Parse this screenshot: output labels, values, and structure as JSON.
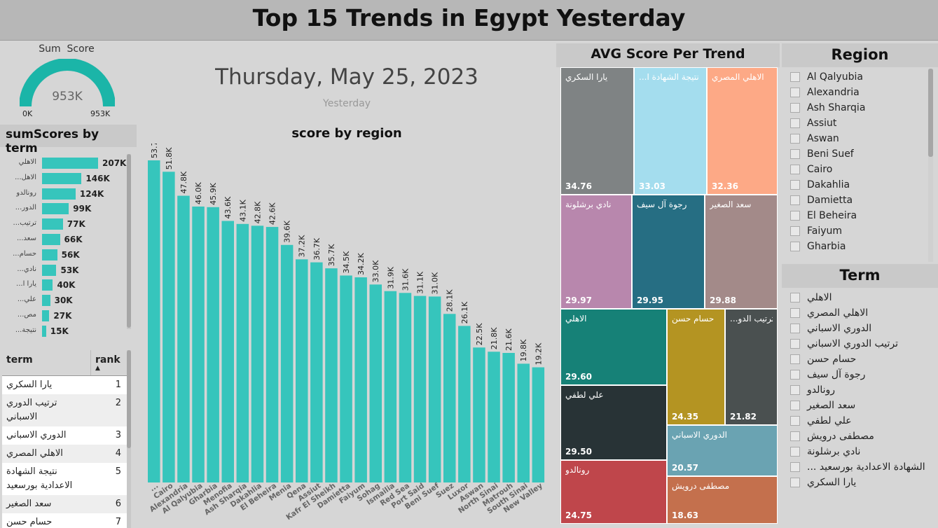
{
  "title": "Top 15 Trends in Egypt Yesterday",
  "gauge": {
    "title": "Sum  Score",
    "value_label": "953K",
    "min_label": "0K",
    "max_label": "953K",
    "fill_fraction": 1.0,
    "color": "#1bb5a8"
  },
  "date_card": {
    "date": "Thursday, May 25, 2023",
    "caption": "Yesterday"
  },
  "sum_scores": {
    "title": "sumScores by term",
    "terms": [
      "الاهلي",
      "...الاهل",
      "رونالدو",
      "...الدور",
      "...ترتيب",
      "...سعد",
      "...حسام",
      "...نادي",
      "...يارا ا",
      "...علي",
      "...مص",
      "...نتيجة"
    ],
    "values": [
      207,
      146,
      124,
      99,
      77,
      66,
      56,
      53,
      40,
      30,
      27,
      15
    ],
    "value_labels": [
      "207K",
      "146K",
      "124K",
      "99K",
      "77K",
      "66K",
      "56K",
      "53K",
      "40K",
      "30K",
      "27K",
      "15K"
    ],
    "color": "#36c5bc"
  },
  "rank_table": {
    "col_term": "term",
    "col_rank": "rank",
    "rows": [
      {
        "term": "يارا السكري",
        "rank": "1"
      },
      {
        "term": "ترتيب الدوري الاسباني",
        "rank": "2"
      },
      {
        "term": "الدوري الاسباني",
        "rank": "3"
      },
      {
        "term": "الاهلي المصري",
        "rank": "4"
      },
      {
        "term": "نتيجة الشهادة الاعدادية بورسعيد",
        "rank": "5"
      },
      {
        "term": "سعد الصغير",
        "rank": "6"
      },
      {
        "term": "حسام حسن",
        "rank": "7"
      }
    ]
  },
  "chart_data": {
    "type": "bar",
    "title": "score by region",
    "categories": [
      "...",
      "Cairo",
      "Alexandria",
      "Al Qalyubia",
      "Gharbia",
      "Menofia",
      "Ash Sharqia",
      "Dakahlia",
      "El Beheira",
      "Menia",
      "Qena",
      "Assiut",
      "Kafr El Sheikh",
      "Damietta",
      "Faiyum",
      "Sohag",
      "Ismailia",
      "Red Sea",
      "Port Said",
      "Beni Suef",
      "Suez",
      "Luxor",
      "Aswan",
      "North Sinai",
      "Matrouh",
      "South Sinai",
      "New Valley"
    ],
    "values": [
      53.7,
      51.8,
      47.8,
      46.0,
      45.9,
      43.6,
      43.1,
      42.8,
      42.6,
      39.6,
      37.2,
      36.7,
      35.7,
      34.5,
      34.2,
      33.0,
      31.9,
      31.6,
      31.1,
      31.0,
      28.1,
      26.1,
      22.5,
      21.8,
      21.6,
      19.8,
      19.2
    ],
    "value_labels": [
      "53.7K",
      "51.8K",
      "47.8K",
      "46.0K",
      "45.9K",
      "43.6K",
      "43.1K",
      "42.8K",
      "42.6K",
      "39.6K",
      "37.2K",
      "36.7K",
      "35.7K",
      "34.5K",
      "34.2K",
      "33.0K",
      "31.9K",
      "31.6K",
      "31.1K",
      "31.0K",
      "28.1K",
      "26.1K",
      "22.5K",
      "21.8K",
      "21.6K",
      "19.8K",
      "19.2K"
    ],
    "color": "#36c5bc"
  },
  "treemap": {
    "title": "AVG Score Per Trend",
    "cells": [
      {
        "term": "يارا السكري",
        "value": "34.76",
        "color": "#7f8384"
      },
      {
        "term": "...نتيجة الشهادة ا",
        "value": "33.03",
        "color": "#a4ddee"
      },
      {
        "term": "الاهلي المصري",
        "value": "32.36",
        "color": "#fda986"
      },
      {
        "term": "نادي برشلونة",
        "value": "29.97",
        "color": "#b887ad"
      },
      {
        "term": "رجوة آل سيف",
        "value": "29.95",
        "color": "#266e83"
      },
      {
        "term": "سعد الصغير",
        "value": "29.88",
        "color": "#a38a89"
      },
      {
        "term": "الاهلي",
        "value": "29.60",
        "color": "#168177"
      },
      {
        "term": "حسام حسن",
        "value": "24.35",
        "color": "#b49422"
      },
      {
        "term": "...ترتيب الدو",
        "value": "21.82",
        "color": "#4a5050"
      },
      {
        "term": "علي لطفي",
        "value": "29.50",
        "color": "#283336"
      },
      {
        "term": "الدوري الاسباني",
        "value": "20.57",
        "color": "#6aa3b2"
      },
      {
        "term": "رونالدو",
        "value": "24.75",
        "color": "#bf464b"
      },
      {
        "term": "مصطفى درويش",
        "value": "18.63",
        "color": "#c4704d"
      }
    ]
  },
  "region_slicer": {
    "title": "Region",
    "items": [
      "Al Qalyubia",
      "Alexandria",
      "Ash Sharqia",
      "Assiut",
      "Aswan",
      "Beni Suef",
      "Cairo",
      "Dakahlia",
      "Damietta",
      "El Beheira",
      "Faiyum",
      "Gharbia"
    ]
  },
  "term_slicer": {
    "title": "Term",
    "items": [
      "الاهلي",
      "الاهلي المصري",
      "الدوري الاسباني",
      "ترتيب الدوري الاسباني",
      "حسام حسن",
      "رجوة آل سيف",
      "رونالدو",
      "سعد الصغير",
      "علي لطفي",
      "مصطفى درويش",
      "نادي برشلونة",
      "... الشهادة الاعدادية بورسعيد",
      "يارا السكري"
    ]
  }
}
